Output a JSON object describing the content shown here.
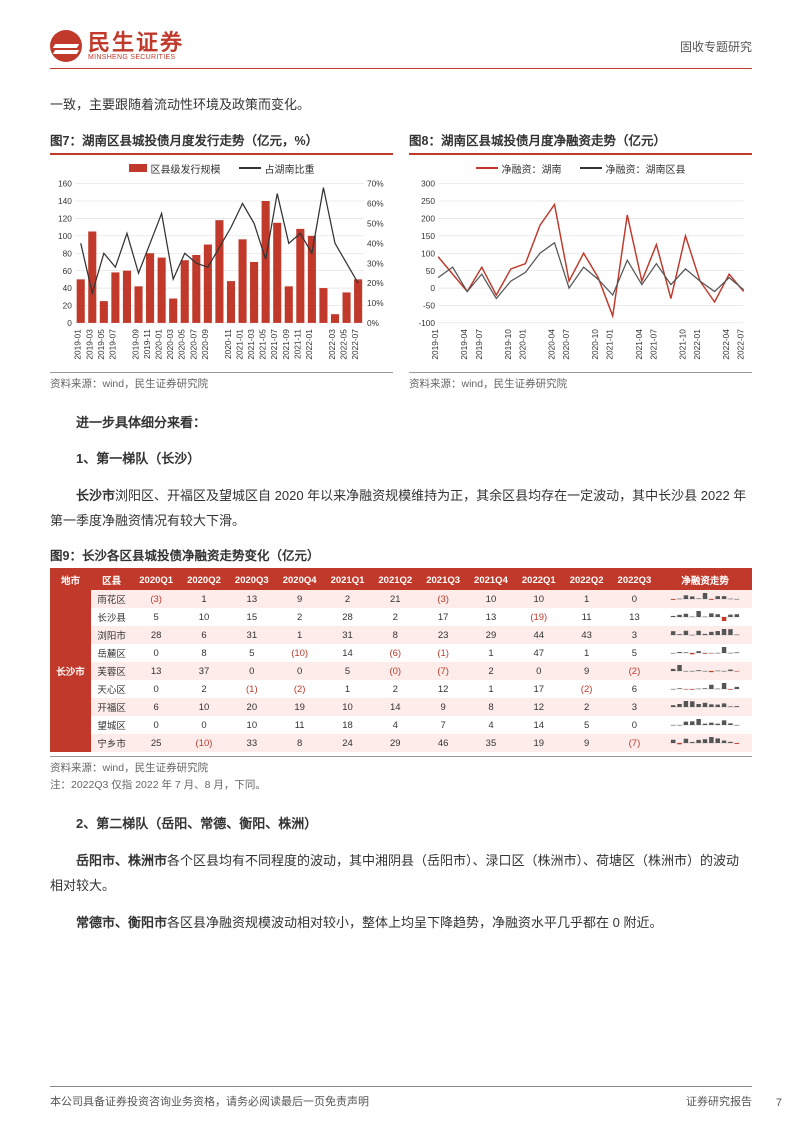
{
  "header": {
    "logo_cn": "民生证券",
    "logo_en": "MINSHENG SECURITIES",
    "right": "固收专题研究"
  },
  "intro_para": "一致，主要跟随着流动性环境及政策而变化。",
  "chart7": {
    "title": "图7：湖南区县城投债月度发行走势（亿元，%）",
    "type": "bar+line",
    "legend_bar": "区县级发行规模",
    "legend_line": "占湖南比重",
    "x_labels": [
      "2019-01",
      "2019-03",
      "2019-05",
      "2019-07",
      "2019-09",
      "2019-11",
      "2020-01",
      "2020-03",
      "2020-05",
      "2020-07",
      "2020-09",
      "2020-11",
      "2021-01",
      "2021-03",
      "2021-05",
      "2021-07",
      "2021-09",
      "2021-11",
      "2022-01",
      "2022-03",
      "2022-05",
      "2022-07"
    ],
    "bars": [
      50,
      105,
      25,
      58,
      60,
      42,
      80,
      75,
      28,
      72,
      78,
      90,
      118,
      48,
      96,
      70,
      140,
      115,
      42,
      108,
      100,
      40,
      10,
      35,
      50
    ],
    "line_pct": [
      40,
      15,
      35,
      28,
      45,
      25,
      40,
      55,
      22,
      35,
      30,
      28,
      38,
      48,
      60,
      50,
      32,
      65,
      40,
      45,
      35,
      68,
      40,
      30,
      20
    ],
    "left_ylim": [
      0,
      160
    ],
    "left_ticks": [
      0,
      20,
      40,
      60,
      80,
      100,
      120,
      140,
      160
    ],
    "right_ylim": [
      0,
      70
    ],
    "right_ticks": [
      "0%",
      "10%",
      "20%",
      "30%",
      "40%",
      "50%",
      "60%",
      "70%"
    ],
    "bar_color": "#c0392b",
    "line_color": "#333333",
    "grid_color": "#d9d9d9",
    "label_fontsize": 8,
    "source": "资料来源：wind，民生证券研究院"
  },
  "chart8": {
    "title": "图8：湖南区县城投债月度净融资走势（亿元）",
    "type": "line",
    "legend_a": "净融资：湖南",
    "legend_b": "净融资：湖南区县",
    "x_labels": [
      "2019-01",
      "2019-04",
      "2019-07",
      "2019-10",
      "2020-01",
      "2020-04",
      "2020-07",
      "2020-10",
      "2021-01",
      "2021-04",
      "2021-07",
      "2021-10",
      "2022-01",
      "2022-04",
      "2022-07"
    ],
    "series_a": [
      90,
      40,
      -10,
      60,
      -20,
      55,
      70,
      180,
      240,
      20,
      100,
      30,
      -80,
      210,
      20,
      125,
      -30,
      150,
      20,
      -40,
      40,
      -10
    ],
    "series_b": [
      30,
      60,
      -10,
      40,
      -30,
      20,
      45,
      100,
      130,
      0,
      60,
      25,
      -20,
      80,
      10,
      70,
      10,
      55,
      20,
      -10,
      30,
      -5
    ],
    "ylim": [
      -100,
      300
    ],
    "yticks": [
      -100,
      -50,
      0,
      50,
      100,
      150,
      200,
      250,
      300
    ],
    "color_a": "#c0392b",
    "color_b": "#555555",
    "grid_color": "#d9d9d9",
    "label_fontsize": 8,
    "source": "资料来源：wind，民生证券研究院"
  },
  "section_detail": "进一步具体细分来看：",
  "tier1_head": "1、第一梯队（长沙）",
  "tier1_para": "长沙市浏阳区、开福区及望城区自 2020 年以来净融资规模维持为正，其余区县均存在一定波动，其中长沙县 2022 年第一季度净融资情况有较大下滑。",
  "table9": {
    "title": "图9：长沙各区县城投债净融资走势变化（亿元）",
    "columns": [
      "地市",
      "区县",
      "2020Q1",
      "2020Q2",
      "2020Q3",
      "2020Q4",
      "2021Q1",
      "2021Q2",
      "2021Q3",
      "2021Q4",
      "2022Q1",
      "2022Q2",
      "2022Q3",
      "净融资走势"
    ],
    "city": "长沙市",
    "rows": [
      {
        "name": "雨花区",
        "vals": [
          "(3)",
          "1",
          "13",
          "9",
          "2",
          "21",
          "(3)",
          "10",
          "10",
          "1",
          "0"
        ]
      },
      {
        "name": "长沙县",
        "vals": [
          "5",
          "10",
          "15",
          "2",
          "28",
          "2",
          "17",
          "13",
          "(19)",
          "11",
          "13"
        ]
      },
      {
        "name": "浏阳市",
        "vals": [
          "28",
          "6",
          "31",
          "1",
          "31",
          "8",
          "23",
          "29",
          "44",
          "43",
          "3"
        ]
      },
      {
        "name": "岳麓区",
        "vals": [
          "0",
          "8",
          "5",
          "(10)",
          "14",
          "(6)",
          "(1)",
          "1",
          "47",
          "1",
          "5"
        ]
      },
      {
        "name": "芙蓉区",
        "vals": [
          "13",
          "37",
          "0",
          "0",
          "5",
          "(0)",
          "(7)",
          "2",
          "0",
          "9",
          "(2)"
        ]
      },
      {
        "name": "天心区",
        "vals": [
          "0",
          "2",
          "(1)",
          "(2)",
          "1",
          "2",
          "12",
          "1",
          "17",
          "(2)",
          "6"
        ]
      },
      {
        "name": "开福区",
        "vals": [
          "6",
          "10",
          "20",
          "19",
          "10",
          "14",
          "9",
          "8",
          "12",
          "2",
          "3"
        ]
      },
      {
        "name": "望城区",
        "vals": [
          "0",
          "0",
          "10",
          "11",
          "18",
          "4",
          "7",
          "4",
          "14",
          "5",
          "0"
        ]
      },
      {
        "name": "宁乡市",
        "vals": [
          "25",
          "(10)",
          "33",
          "8",
          "24",
          "29",
          "46",
          "35",
          "19",
          "9",
          "(7)"
        ]
      }
    ],
    "source": "资料来源：wind，民生证券研究院",
    "note": "注：2022Q3 仅指 2022 年 7 月、8 月，下同。",
    "spark_color_pos": "#555555",
    "spark_color_neg": "#c0392b"
  },
  "tier2_head": "2、第二梯队（岳阳、常德、衡阳、株洲）",
  "tier2_para1_a": "岳阳市、株洲市",
  "tier2_para1_b": "各个区县均有不同程度的波动，其中湘阴县（岳阳市）、渌口区（株洲市）、荷塘区（株洲市）的波动相对较大。",
  "tier2_para2_a": "常德市、衡阳市",
  "tier2_para2_b": "各区县净融资规模波动相对较小，整体上均呈下降趋势，净融资水平几乎都在 0 附近。",
  "footer": {
    "left": "本公司具备证券投资咨询业务资格，请务必阅读最后一页免责声明",
    "right": "证券研究报告",
    "page": "7"
  }
}
